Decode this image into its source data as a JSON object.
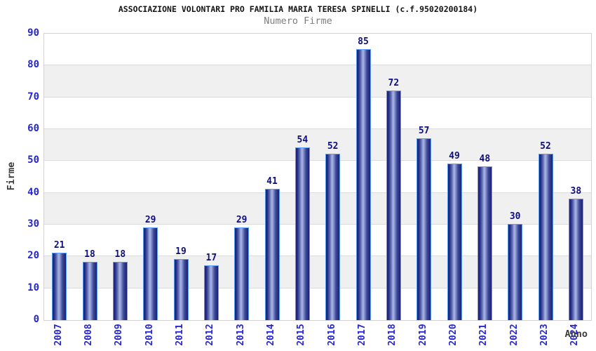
{
  "header": {
    "title": "ASSOCIAZIONE VOLONTARI PRO FAMILIA MARIA TERESA SPINELLI (c.f.95020200184)",
    "subtitle": "Numero Firme"
  },
  "chart_data": {
    "type": "bar",
    "title": "ASSOCIAZIONE VOLONTARI PRO FAMILIA MARIA TERESA SPINELLI (c.f.95020200184)",
    "subtitle": "Numero Firme",
    "categories": [
      "2007",
      "2008",
      "2009",
      "2010",
      "2011",
      "2012",
      "2013",
      "2014",
      "2015",
      "2016",
      "2017",
      "2018",
      "2019",
      "2020",
      "2021",
      "2022",
      "2023",
      "2024"
    ],
    "values": [
      21,
      18,
      18,
      29,
      19,
      17,
      29,
      41,
      54,
      52,
      85,
      72,
      57,
      49,
      48,
      30,
      52,
      38
    ],
    "xlabel": "Anno",
    "ylabel": "Firme",
    "ylim": [
      0,
      90
    ],
    "ytick_step": 10,
    "yticks": [
      0,
      10,
      20,
      30,
      40,
      50,
      60,
      70,
      80,
      90
    ],
    "grid": true,
    "legend": "none",
    "colors": {
      "bar_dark": "#1a2170",
      "bar_highlight": "#aab4e3",
      "bar_border": "#5b9cf6",
      "tick_label_blue": "#2626d0",
      "value_label_navy": "#0e0e7d",
      "axis_title_gray": "#3d3d3d",
      "title_color": "#141414",
      "subtitle_color": "#7d7d7d",
      "band_gray": "#f0f0f0",
      "band_white": "#ffffff",
      "gridline": "#dcdcdc",
      "plot_border": "#d3d3d3"
    }
  }
}
